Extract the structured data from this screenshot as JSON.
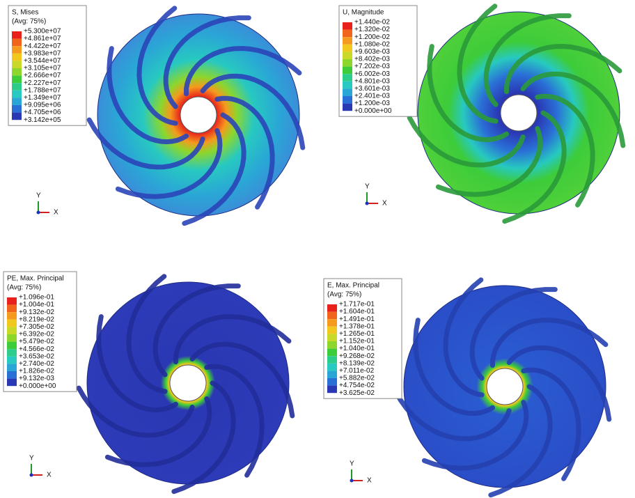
{
  "panels": [
    {
      "title": "S, Mises",
      "subtitle": "(Avg: 75%)",
      "labels": [
        "+5.300e+07",
        "+4.861e+07",
        "+4.422e+07",
        "+3.983e+07",
        "+3.544e+07",
        "+3.105e+07",
        "+2.666e+07",
        "+2.227e+07",
        "+1.788e+07",
        "+1.349e+07",
        "+9.095e+06",
        "+4.705e+06",
        "+3.142e+05"
      ],
      "axis_y": "Y",
      "axis_x": "X"
    },
    {
      "title": "U, Magnitude",
      "labels": [
        "+1.440e-02",
        "+1.320e-02",
        "+1.200e-02",
        "+1.080e-02",
        "+9.603e-03",
        "+8.402e-03",
        "+7.202e-03",
        "+6.002e-03",
        "+4.801e-03",
        "+3.601e-03",
        "+2.401e-03",
        "+1.200e-03",
        "+0.000e+00"
      ],
      "axis_y": "Y",
      "axis_x": "X"
    },
    {
      "title": "PE, Max. Principal",
      "subtitle": "(Avg: 75%)",
      "labels": [
        "+1.096e-01",
        "+1.004e-01",
        "+9.132e-02",
        "+8.219e-02",
        "+7.305e-02",
        "+6.392e-02",
        "+5.479e-02",
        "+4.566e-02",
        "+3.653e-02",
        "+2.740e-02",
        "+1.826e-02",
        "+9.132e-03",
        "+0.000e+00"
      ],
      "axis_y": "Y",
      "axis_x": "X"
    },
    {
      "title": "E, Max. Principal",
      "subtitle": "(Avg: 75%)",
      "labels": [
        "+1.717e-01",
        "+1.604e-01",
        "+1.491e-01",
        "+1.378e-01",
        "+1.265e-01",
        "+1.152e-01",
        "+1.040e-01",
        "+9.268e-02",
        "+8.139e-02",
        "+7.011e-02",
        "+5.882e-02",
        "+4.754e-02",
        "+3.625e-02"
      ],
      "axis_y": "Y",
      "axis_x": "X"
    }
  ]
}
